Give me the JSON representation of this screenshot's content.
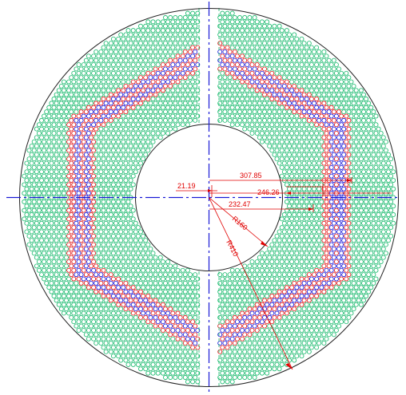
{
  "drawing": {
    "dimensions": {
      "d1": "21.19",
      "d2": "307.85",
      "d3": "246.26",
      "d4": "232.47",
      "r1": "R160",
      "r2": "R410"
    },
    "colors": {
      "outline": "#222222",
      "centerline": "#1a1ad6",
      "dimension": "#e00000",
      "green_holes": "#14b86a",
      "red_holes": "#e01010",
      "blue_holes": "#1010d8",
      "gap_lines": "#14b86a"
    },
    "legend_semantics": {
      "green": "filler-holes",
      "red": "red-hole-bands",
      "blue": "blue-hole-bands"
    }
  }
}
